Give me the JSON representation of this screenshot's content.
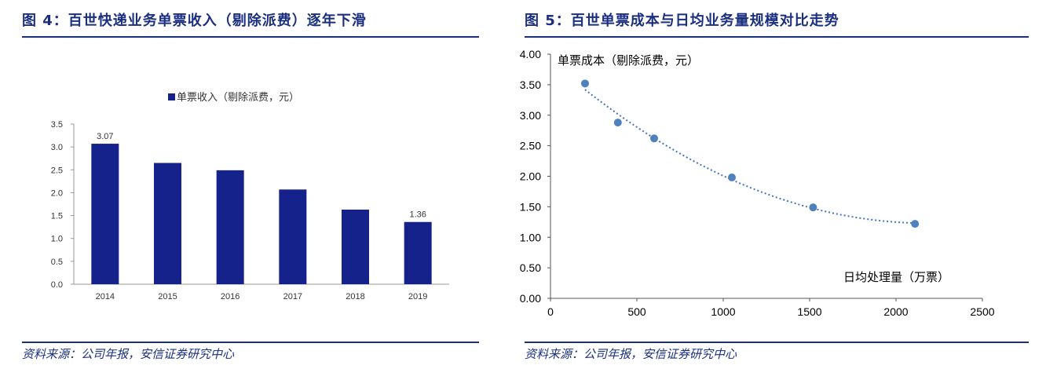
{
  "figures": {
    "left": {
      "title": "图 4：百世快递业务单票收入（剔除派费）逐年下滑",
      "source": "资料来源：公司年报，安信证券研究中心"
    },
    "right": {
      "title": "图 5：百世单票成本与日均业务量规模对比走势",
      "source": "资料来源：公司年报，安信证券研究中心"
    }
  },
  "colors": {
    "accent": "#1b2f80",
    "bar": "#16228c",
    "scatter": "#4f81bd",
    "trend": "#4472c4"
  },
  "chart_data": [
    {
      "type": "bar",
      "categories": [
        "2014",
        "2015",
        "2016",
        "2017",
        "2018",
        "2019"
      ],
      "series": [
        {
          "name": "单票收入（剔除派费，元）",
          "values": [
            3.07,
            2.65,
            2.49,
            2.07,
            1.63,
            1.36
          ]
        }
      ],
      "data_labels": [
        "3.07",
        "",
        "",
        "",
        "",
        "1.36"
      ],
      "ylim": [
        0,
        3.5
      ],
      "yticks": [
        "0.0",
        "0.5",
        "1.0",
        "1.5",
        "2.0",
        "2.5",
        "3.0",
        "3.5"
      ],
      "legend": "top-center",
      "grid": false
    },
    {
      "type": "scatter",
      "series": [
        {
          "x": [
            200,
            390,
            600,
            1050,
            1520,
            2110
          ],
          "y": [
            3.52,
            2.88,
            2.62,
            1.98,
            1.49,
            1.22
          ]
        }
      ],
      "trendline": "polynomial",
      "xlabel": "日均处理量（万票）",
      "ylabel": "单票成本（剔除派费，元）",
      "xlim": [
        0,
        2500
      ],
      "ylim": [
        0,
        4
      ],
      "xticks": [
        "0",
        "500",
        "1000",
        "1500",
        "2000",
        "2500"
      ],
      "yticks": [
        "0.00",
        "0.50",
        "1.00",
        "1.50",
        "2.00",
        "2.50",
        "3.00",
        "3.50",
        "4.00"
      ],
      "grid": false
    }
  ]
}
